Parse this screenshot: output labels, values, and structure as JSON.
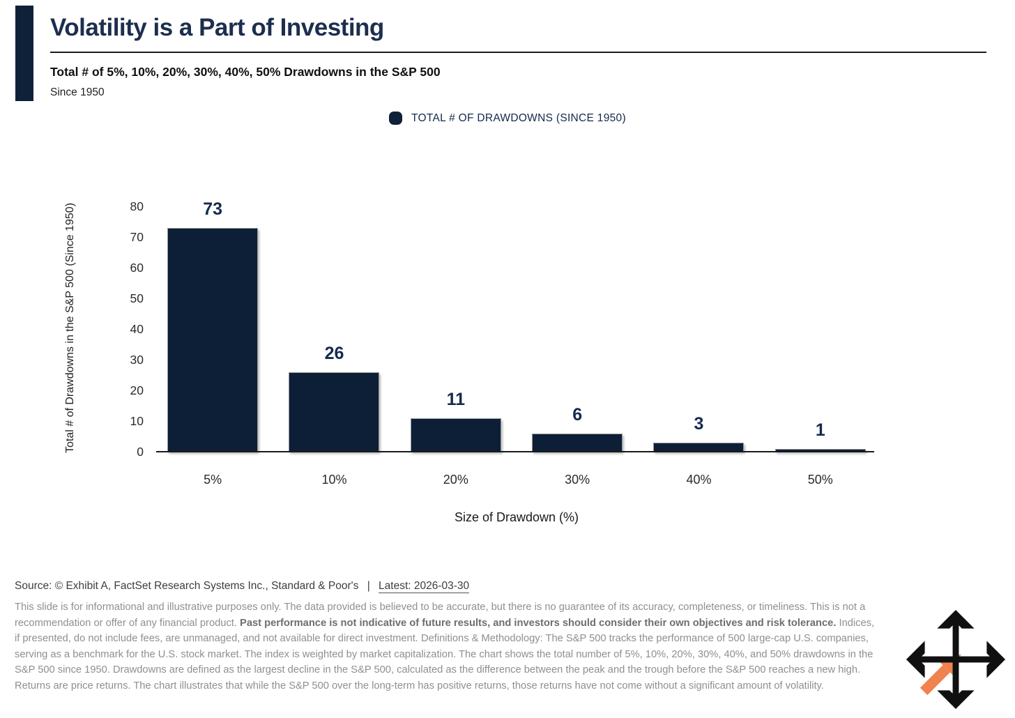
{
  "header": {
    "title": "Volatility is a Part of Investing",
    "subtitle": "Total # of 5%, 10%, 20%, 30%, 40%, 50% Drawdowns in the S&P 500",
    "period": "Since 1950"
  },
  "legend": {
    "label": "TOTAL # OF DRAWDOWNS (SINCE 1950)",
    "swatch_color": "#0f2138"
  },
  "chart_data": {
    "type": "bar",
    "title": "Total # of 5%, 10%, 20%, 30%, 40%, 50% Drawdowns in the S&P 500",
    "subtitle": "Since 1950",
    "categories": [
      "5%",
      "10%",
      "20%",
      "30%",
      "40%",
      "50%"
    ],
    "values": [
      73,
      26,
      11,
      6,
      3,
      1
    ],
    "series": [
      {
        "name": "TOTAL # OF DRAWDOWNS (SINCE 1950)",
        "values": [
          73,
          26,
          11,
          6,
          3,
          1
        ]
      }
    ],
    "xlabel": "Size of Drawdown (%)",
    "ylabel": "Total # of Drawdowns in the S&P 500 (Since 1950)",
    "ylim": [
      0,
      80
    ],
    "yticks": [
      0,
      10,
      20,
      30,
      40,
      50,
      60,
      70,
      80
    ],
    "bar_color": "#0d1f37",
    "grid": false,
    "legend_position": "top",
    "value_labels": true
  },
  "footer": {
    "source_prefix": "Source: © Exhibit A, FactSet Research Systems Inc., Standard & Poor's",
    "separator": "|",
    "latest": "Latest: 2026-03-30",
    "disclaimer_segments": [
      {
        "bold": false,
        "text": "This slide is for informational and illustrative purposes only. The data provided is believed to be accurate, but there is no guarantee of its accuracy, completeness, or timeliness. This is not a recommendation or offer of any financial product. "
      },
      {
        "bold": true,
        "text": "Past performance is not indicative of future results, and investors should consider their own objectives and risk tolerance."
      },
      {
        "bold": false,
        "text": " Indices, if presented, do not include fees, are unmanaged, and not available for direct investment. Definitions & Methodology: The S&P 500 tracks the performance of 500 large-cap U.S. companies, serving as a benchmark for the U.S. stock market. The index is weighted by market capitalization. The chart shows the total number of 5%, 10%, 20%, 30%, 40%, and 50% drawdowns in the S&P 500 since 1950. Drawdowns are defined as the largest decline in the S&P 500, calculated as the difference between the peak and the trough before the S&P 500 reaches a new high. Returns are price returns. The chart illustrates that while the S&P 500 over the long-term has positive returns, those returns have not come without a significant amount of volatility."
      }
    ],
    "logo": {
      "name": "move-arrows-logo",
      "black": "#101010",
      "orange": "#f0824f"
    }
  }
}
